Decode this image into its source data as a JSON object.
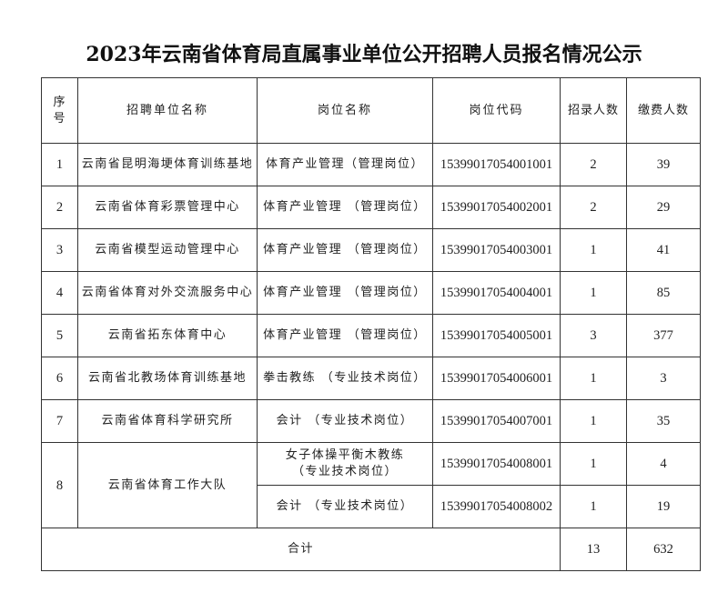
{
  "title": "2023年云南省体育局直属事业单位公开招聘人员报名情况公示",
  "table": {
    "headers": [
      "序号",
      "招聘单位名称",
      "岗位名称",
      "岗位代码",
      "招录人数",
      "缴费人数"
    ],
    "rows": [
      {
        "no": "1",
        "unit": "云南省昆明海埂体育训练基地",
        "post": "体育产业管理（管理岗位）",
        "code": "15399017054001001",
        "hire": "2",
        "paid": "39"
      },
      {
        "no": "2",
        "unit": "云南省体育彩票管理中心",
        "post": "体育产业管理 （管理岗位）",
        "code": "15399017054002001",
        "hire": "2",
        "paid": "29"
      },
      {
        "no": "3",
        "unit": "云南省模型运动管理中心",
        "post": "体育产业管理 （管理岗位）",
        "code": "15399017054003001",
        "hire": "1",
        "paid": "41"
      },
      {
        "no": "4",
        "unit": "云南省体育对外交流服务中心",
        "post": "体育产业管理 （管理岗位）",
        "code": "15399017054004001",
        "hire": "1",
        "paid": "85"
      },
      {
        "no": "5",
        "unit": "云南省拓东体育中心",
        "post": "体育产业管理 （管理岗位）",
        "code": "15399017054005001",
        "hire": "3",
        "paid": "377"
      },
      {
        "no": "6",
        "unit": "云南省北教场体育训练基地",
        "post": "拳击教练 （专业技术岗位）",
        "code": "15399017054006001",
        "hire": "1",
        "paid": "3"
      },
      {
        "no": "7",
        "unit": "云南省体育科学研究所",
        "post": "会计 （专业技术岗位）",
        "code": "15399017054007001",
        "hire": "1",
        "paid": "35"
      },
      {
        "no": "8",
        "unit": "云南省体育工作大队",
        "post": "女子体操平衡木教练",
        "post_line2": "（专业技术岗位）",
        "code": "15399017054008001",
        "hire": "1",
        "paid": "4"
      },
      {
        "post": "会计 （专业技术岗位）",
        "code": "15399017054008002",
        "hire": "1",
        "paid": "19"
      }
    ],
    "total": {
      "label": "合计",
      "hire": "13",
      "paid": "632"
    }
  }
}
